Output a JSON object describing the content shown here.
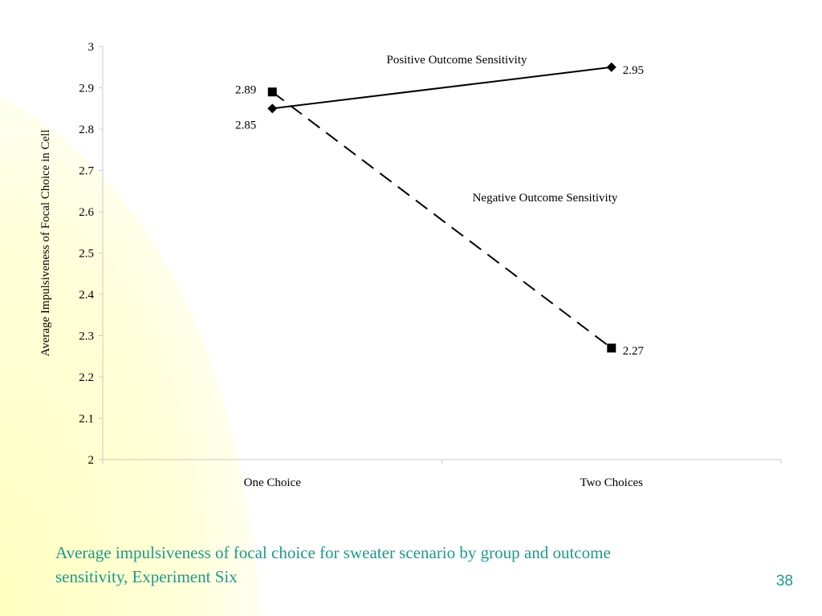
{
  "slide": {
    "caption": "Average impulsiveness of focal choice for sweater scenario by group and outcome sensitivity, Experiment Six",
    "page_number": "38",
    "caption_color": "#1a9a8c",
    "background_accent": "#ffffc8"
  },
  "chart_data": {
    "type": "line",
    "title": "",
    "xlabel": "",
    "ylabel": "Average Impulsiveness of Focal Choice in Cell",
    "categories": [
      "One Choice",
      "Two Choices"
    ],
    "ylim": [
      2,
      3
    ],
    "yticks": [
      "2",
      "2.1",
      "2.2",
      "2.3",
      "2.4",
      "2.5",
      "2.6",
      "2.7",
      "2.8",
      "2.9",
      "3"
    ],
    "grid": false,
    "legend": "none",
    "series": [
      {
        "name": "Positive Outcome Sensitivity",
        "values": [
          2.85,
          2.95
        ],
        "value_labels": [
          "2.85",
          "2.95"
        ],
        "marker": "diamond",
        "line_style": "solid",
        "color": "#000000"
      },
      {
        "name": "Negative Outcome Sensitivity",
        "values": [
          2.89,
          2.27
        ],
        "value_labels": [
          "2.89",
          "2.27"
        ],
        "marker": "square",
        "line_style": "dashed",
        "color": "#000000"
      }
    ]
  }
}
